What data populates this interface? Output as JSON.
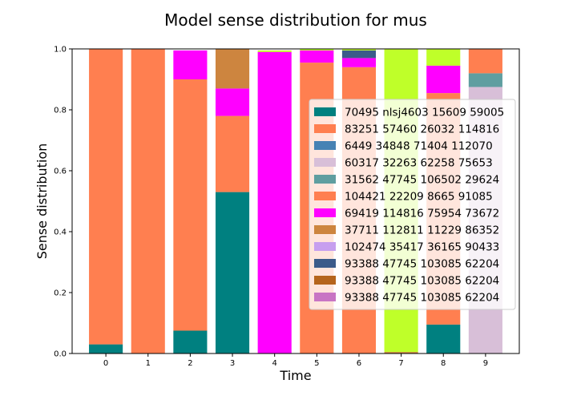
{
  "chart_data": {
    "type": "bar",
    "stacked": true,
    "title": "Model sense distribution for mus",
    "xlabel": "Time",
    "ylabel": "Sense distribution",
    "ylim": [
      0,
      1.0
    ],
    "yticks": [
      "0.0",
      "0.2",
      "0.4",
      "0.6",
      "0.8",
      "1.0"
    ],
    "categories": [
      "0",
      "1",
      "2",
      "3",
      "4",
      "5",
      "6",
      "7",
      "8",
      "9"
    ],
    "legend_position": "center-right",
    "series": [
      {
        "name": "70495 nlsj4603 15609 59005",
        "color": "#008080",
        "values": [
          0.03,
          0,
          0.075,
          0.53,
          0,
          0,
          0,
          0,
          0.095,
          0
        ]
      },
      {
        "name": "83251 57460 26032 114816",
        "color": "#ff7f50",
        "values": [
          0.97,
          1.0,
          0,
          0,
          0,
          0,
          0,
          0,
          0,
          0
        ]
      },
      {
        "name": "6449 34848 71404 112070",
        "color": "#4682b4",
        "values": [
          0,
          0,
          0,
          0,
          0,
          0,
          0,
          0,
          0,
          0
        ]
      },
      {
        "name": "60317 32263 62258 75653",
        "color": "#d8bfd8",
        "values": [
          0,
          0,
          0,
          0,
          0,
          0,
          0,
          0,
          0,
          0.875
        ]
      },
      {
        "name": "31562 47745 106502 29624",
        "color": "#5f9ea0",
        "values": [
          0,
          0,
          0,
          0,
          0,
          0,
          0,
          0,
          0,
          0.045
        ]
      },
      {
        "name": "104421 22209 8665 91085",
        "color": "#ff7f50",
        "values": [
          0,
          0,
          0.825,
          0.25,
          0,
          0.955,
          0.94,
          0,
          0.76,
          0.08
        ]
      },
      {
        "name": "69419 114816 75954 73672",
        "color": "#ff00ff",
        "values": [
          0,
          0,
          0.095,
          0.09,
          0.99,
          0.04,
          0.03,
          0,
          0.09,
          0
        ]
      },
      {
        "name": "37711 112811 11229 86352",
        "color": "#cd853f",
        "values": [
          0,
          0,
          0,
          0.13,
          0,
          0,
          0,
          0.005,
          0,
          0
        ]
      },
      {
        "name": "102474 35417 36165 90433",
        "color": "#c79fef",
        "values": [
          0,
          0,
          0,
          0,
          0,
          0,
          0,
          0,
          0,
          0
        ]
      },
      {
        "name": "93388 47745 103085 62204",
        "color": "#3b5b8a",
        "values": [
          0,
          0,
          0,
          0,
          0,
          0,
          0.025,
          0,
          0,
          0
        ]
      },
      {
        "name": "93388 47745 103085 62204",
        "color": "#b5651d",
        "values": [
          0,
          0,
          0,
          0,
          0,
          0,
          0,
          0,
          0,
          0
        ]
      },
      {
        "name": "93388 47745 103085 62204",
        "color": "#c875c4",
        "values": [
          0,
          0,
          0,
          0,
          0,
          0,
          0,
          0,
          0,
          0
        ]
      },
      {
        "name": "",
        "color": "#bfff29",
        "values": [
          0,
          0,
          0,
          0,
          0.005,
          0.005,
          0.005,
          0.995,
          0.055,
          0
        ]
      }
    ]
  }
}
